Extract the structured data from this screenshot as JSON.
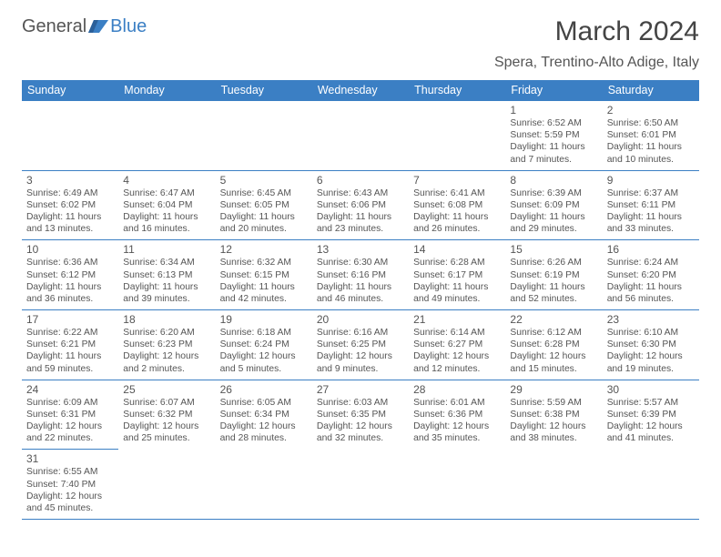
{
  "logo": {
    "text1": "General",
    "text2": "Blue"
  },
  "title": "March 2024",
  "location": "Spera, Trentino-Alto Adige, Italy",
  "colors": {
    "header_bg": "#3b7fc4",
    "header_fg": "#ffffff",
    "rule": "#3b7fc4",
    "text": "#555555",
    "background": "#ffffff"
  },
  "weekdays": [
    "Sunday",
    "Monday",
    "Tuesday",
    "Wednesday",
    "Thursday",
    "Friday",
    "Saturday"
  ],
  "layout": {
    "first_day_column": 5,
    "days_in_month": 31,
    "rows": 6
  },
  "days": {
    "1": {
      "sunrise": "6:52 AM",
      "sunset": "5:59 PM",
      "daylight": "11 hours and 7 minutes."
    },
    "2": {
      "sunrise": "6:50 AM",
      "sunset": "6:01 PM",
      "daylight": "11 hours and 10 minutes."
    },
    "3": {
      "sunrise": "6:49 AM",
      "sunset": "6:02 PM",
      "daylight": "11 hours and 13 minutes."
    },
    "4": {
      "sunrise": "6:47 AM",
      "sunset": "6:04 PM",
      "daylight": "11 hours and 16 minutes."
    },
    "5": {
      "sunrise": "6:45 AM",
      "sunset": "6:05 PM",
      "daylight": "11 hours and 20 minutes."
    },
    "6": {
      "sunrise": "6:43 AM",
      "sunset": "6:06 PM",
      "daylight": "11 hours and 23 minutes."
    },
    "7": {
      "sunrise": "6:41 AM",
      "sunset": "6:08 PM",
      "daylight": "11 hours and 26 minutes."
    },
    "8": {
      "sunrise": "6:39 AM",
      "sunset": "6:09 PM",
      "daylight": "11 hours and 29 minutes."
    },
    "9": {
      "sunrise": "6:37 AM",
      "sunset": "6:11 PM",
      "daylight": "11 hours and 33 minutes."
    },
    "10": {
      "sunrise": "6:36 AM",
      "sunset": "6:12 PM",
      "daylight": "11 hours and 36 minutes."
    },
    "11": {
      "sunrise": "6:34 AM",
      "sunset": "6:13 PM",
      "daylight": "11 hours and 39 minutes."
    },
    "12": {
      "sunrise": "6:32 AM",
      "sunset": "6:15 PM",
      "daylight": "11 hours and 42 minutes."
    },
    "13": {
      "sunrise": "6:30 AM",
      "sunset": "6:16 PM",
      "daylight": "11 hours and 46 minutes."
    },
    "14": {
      "sunrise": "6:28 AM",
      "sunset": "6:17 PM",
      "daylight": "11 hours and 49 minutes."
    },
    "15": {
      "sunrise": "6:26 AM",
      "sunset": "6:19 PM",
      "daylight": "11 hours and 52 minutes."
    },
    "16": {
      "sunrise": "6:24 AM",
      "sunset": "6:20 PM",
      "daylight": "11 hours and 56 minutes."
    },
    "17": {
      "sunrise": "6:22 AM",
      "sunset": "6:21 PM",
      "daylight": "11 hours and 59 minutes."
    },
    "18": {
      "sunrise": "6:20 AM",
      "sunset": "6:23 PM",
      "daylight": "12 hours and 2 minutes."
    },
    "19": {
      "sunrise": "6:18 AM",
      "sunset": "6:24 PM",
      "daylight": "12 hours and 5 minutes."
    },
    "20": {
      "sunrise": "6:16 AM",
      "sunset": "6:25 PM",
      "daylight": "12 hours and 9 minutes."
    },
    "21": {
      "sunrise": "6:14 AM",
      "sunset": "6:27 PM",
      "daylight": "12 hours and 12 minutes."
    },
    "22": {
      "sunrise": "6:12 AM",
      "sunset": "6:28 PM",
      "daylight": "12 hours and 15 minutes."
    },
    "23": {
      "sunrise": "6:10 AM",
      "sunset": "6:30 PM",
      "daylight": "12 hours and 19 minutes."
    },
    "24": {
      "sunrise": "6:09 AM",
      "sunset": "6:31 PM",
      "daylight": "12 hours and 22 minutes."
    },
    "25": {
      "sunrise": "6:07 AM",
      "sunset": "6:32 PM",
      "daylight": "12 hours and 25 minutes."
    },
    "26": {
      "sunrise": "6:05 AM",
      "sunset": "6:34 PM",
      "daylight": "12 hours and 28 minutes."
    },
    "27": {
      "sunrise": "6:03 AM",
      "sunset": "6:35 PM",
      "daylight": "12 hours and 32 minutes."
    },
    "28": {
      "sunrise": "6:01 AM",
      "sunset": "6:36 PM",
      "daylight": "12 hours and 35 minutes."
    },
    "29": {
      "sunrise": "5:59 AM",
      "sunset": "6:38 PM",
      "daylight": "12 hours and 38 minutes."
    },
    "30": {
      "sunrise": "5:57 AM",
      "sunset": "6:39 PM",
      "daylight": "12 hours and 41 minutes."
    },
    "31": {
      "sunrise": "6:55 AM",
      "sunset": "7:40 PM",
      "daylight": "12 hours and 45 minutes."
    }
  },
  "labels": {
    "sunrise": "Sunrise:",
    "sunset": "Sunset:",
    "daylight": "Daylight:"
  }
}
